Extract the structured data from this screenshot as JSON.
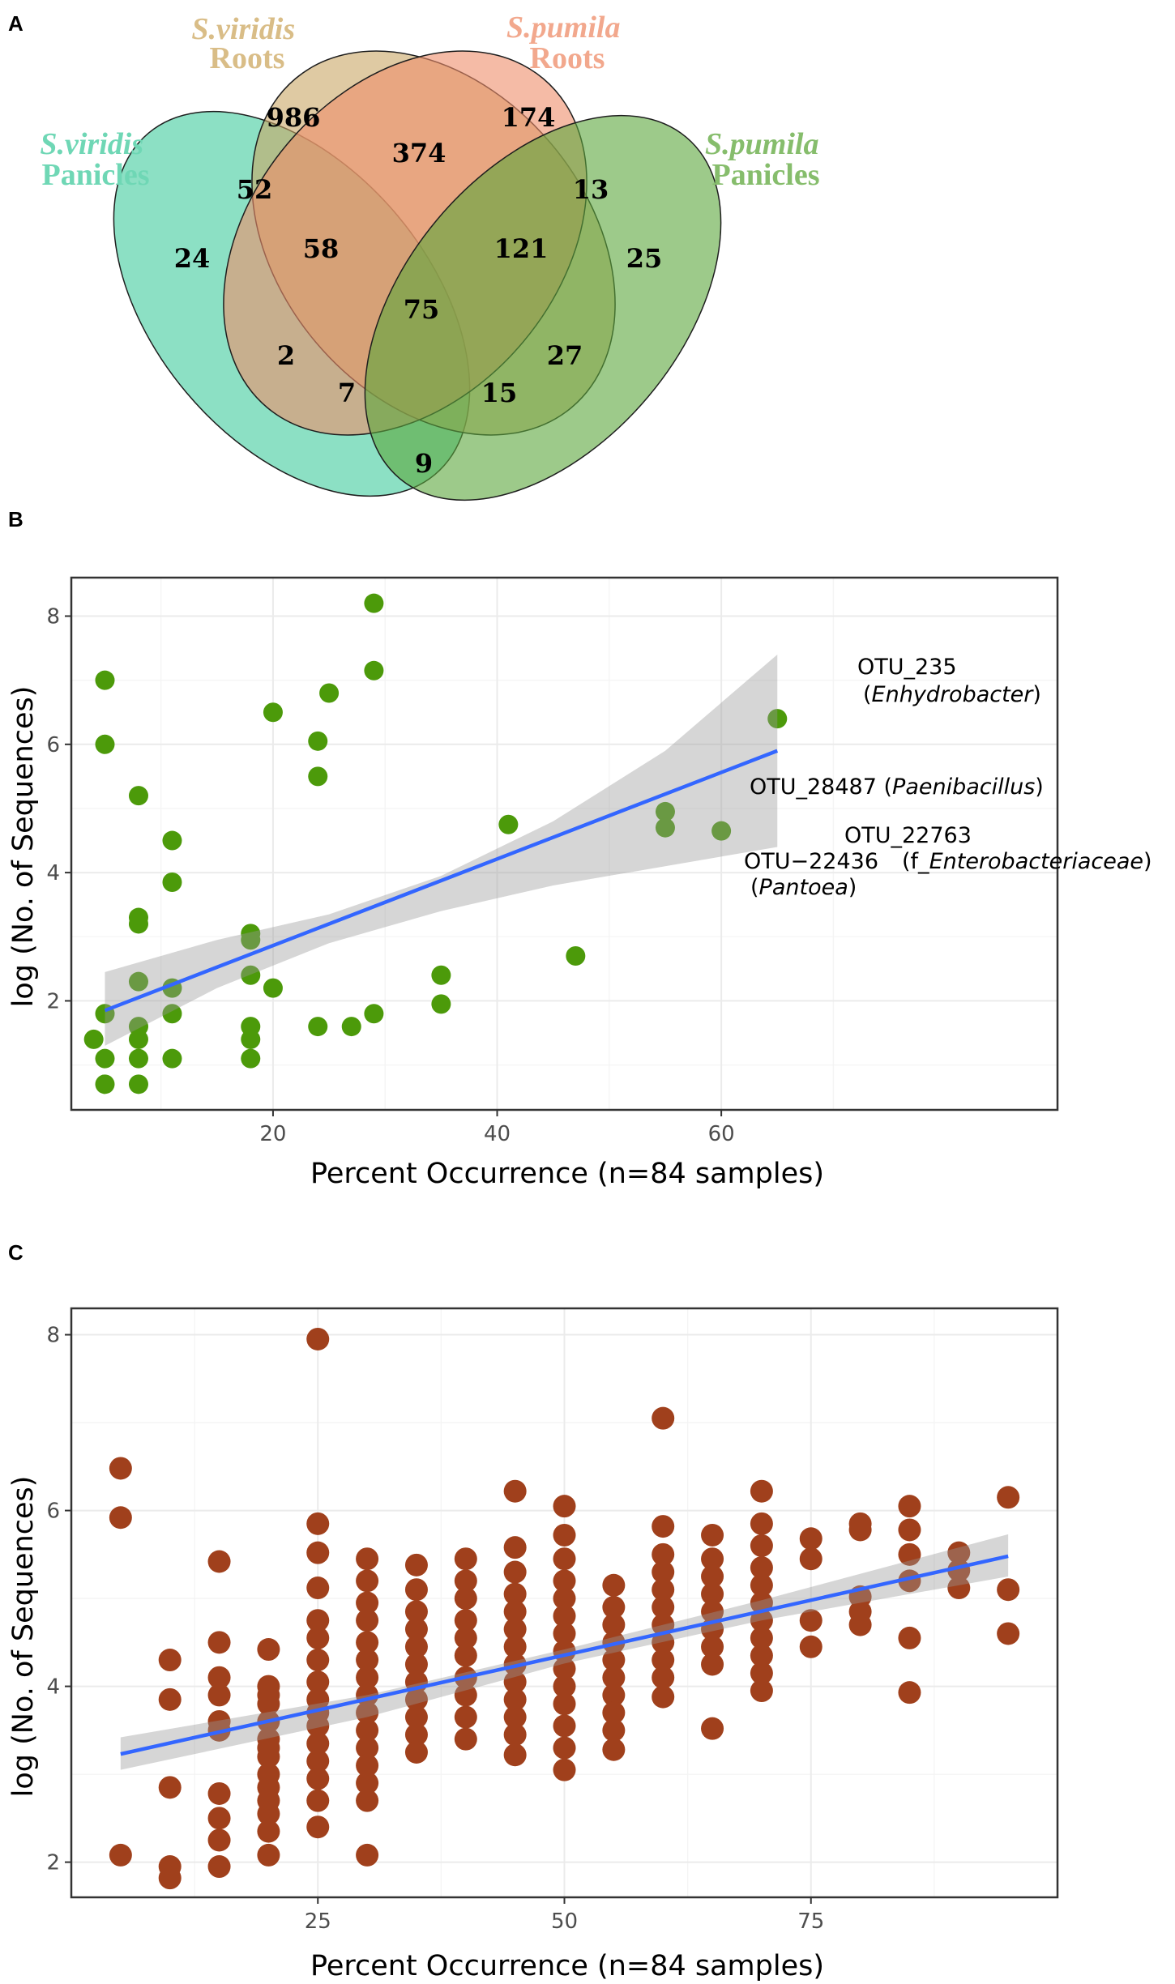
{
  "venn": {
    "panel_letter": "A",
    "sets": [
      {
        "name_it": "S.viridis",
        "name_sub": "Panicles",
        "color": "#3fcb9c",
        "text_color": "#6fd7b5"
      },
      {
        "name_it": "S.viridis",
        "name_sub": "Roots",
        "color": "#c9a766",
        "text_color": "#d9bd87"
      },
      {
        "name_it": "S.pumila",
        "name_sub": "Roots",
        "color": "#ee8d6a",
        "text_color": "#f2a88d"
      },
      {
        "name_it": "S.pumila",
        "name_sub": "Panicles",
        "color": "#5ba63c",
        "text_color": "#86bd6c"
      }
    ],
    "regions": {
      "svr_only": "986",
      "spr_only": "174",
      "svp_only": "24",
      "spp_only": "25",
      "svr_spr": "374",
      "svp_svr": "52",
      "spr_spp": "13",
      "svp_svr_spr": "58",
      "svr_spr_spp": "121",
      "all": "75",
      "svp_spr": "2",
      "svr_spp": "27",
      "svp_spr_spp": "7",
      "svp_svr_spp": "15",
      "svp_spp": "9"
    }
  },
  "chart_data": [
    {
      "panel_letter": "B",
      "type": "scatter",
      "xlabel": "Percent Occurrence (n=84 samples)",
      "ylabel": "log (No. of Sequences)",
      "xlim": [
        2,
        90
      ],
      "ylim": [
        0.3,
        8.6
      ],
      "xticks": [
        20,
        40,
        60
      ],
      "yticks": [
        2,
        4,
        6,
        8
      ],
      "point_color": "#4c9a0a",
      "trend": {
        "x0": 5,
        "y0": 1.85,
        "x1": 65,
        "y1": 5.9,
        "color": "#3366ff"
      },
      "ci_band": {
        "x": [
          5,
          15,
          25,
          35,
          45,
          55,
          65
        ],
        "lo": [
          1.3,
          2.2,
          2.9,
          3.4,
          3.8,
          4.1,
          4.4
        ],
        "hi": [
          2.45,
          2.95,
          3.35,
          3.95,
          4.8,
          5.9,
          7.4
        ]
      },
      "points": [
        [
          4,
          1.4
        ],
        [
          5,
          7.0
        ],
        [
          5,
          6.0
        ],
        [
          5,
          1.8
        ],
        [
          5,
          1.1
        ],
        [
          5,
          0.7
        ],
        [
          8,
          5.2
        ],
        [
          8,
          3.3
        ],
        [
          8,
          3.2
        ],
        [
          8,
          2.3
        ],
        [
          8,
          1.6
        ],
        [
          8,
          1.4
        ],
        [
          8,
          1.1
        ],
        [
          8,
          0.7
        ],
        [
          11,
          4.5
        ],
        [
          11,
          3.85
        ],
        [
          11,
          2.2
        ],
        [
          11,
          1.8
        ],
        [
          11,
          1.1
        ],
        [
          18,
          3.05
        ],
        [
          18,
          2.95
        ],
        [
          18,
          2.4
        ],
        [
          18,
          1.6
        ],
        [
          18,
          1.4
        ],
        [
          18,
          1.1
        ],
        [
          20,
          6.5
        ],
        [
          20,
          2.2
        ],
        [
          24,
          6.05
        ],
        [
          24,
          5.5
        ],
        [
          24,
          1.6
        ],
        [
          25,
          6.8
        ],
        [
          27,
          1.6
        ],
        [
          29,
          8.2
        ],
        [
          29,
          7.15
        ],
        [
          29,
          1.8
        ],
        [
          35,
          2.4
        ],
        [
          35,
          1.95
        ],
        [
          41,
          4.75
        ],
        [
          47,
          2.7
        ],
        [
          55,
          4.95
        ],
        [
          55,
          4.7
        ],
        [
          60,
          4.65
        ],
        [
          65,
          6.4
        ]
      ],
      "labels": {
        "otu235_id": "OTU_235",
        "otu235_taxon": "Enhydrobacter",
        "otu28487_id": "OTU_28487",
        "otu28487_taxon": "Paenibacillus",
        "otu22763_id": "OTU_22763",
        "otu22763_taxon_prefix": "f_",
        "otu22763_taxon": "Enterobacteriaceae",
        "otu22436_id": "OTU−22436",
        "otu22436_taxon": "Pantoea"
      }
    },
    {
      "panel_letter": "C",
      "type": "scatter",
      "xlabel": "Percent Occurrence (n=84 samples)",
      "ylabel": "log (No. of Sequences)",
      "xlim": [
        0,
        100
      ],
      "ylim": [
        1.6,
        8.3
      ],
      "xticks": [
        25,
        50,
        75
      ],
      "yticks": [
        2,
        4,
        6,
        8
      ],
      "point_color": "#a0401c",
      "trend": {
        "x0": 5,
        "y0": 3.23,
        "x1": 95,
        "y1": 5.48,
        "color": "#3366ff"
      },
      "ci_band": {
        "x": [
          5,
          30,
          50,
          70,
          95
        ],
        "lo": [
          3.05,
          3.65,
          4.26,
          4.75,
          5.25
        ],
        "hi": [
          3.42,
          3.9,
          4.42,
          4.98,
          5.73
        ]
      },
      "columns": [
        {
          "x": 5,
          "ys": [
            6.48,
            5.92,
            2.08
          ]
        },
        {
          "x": 10,
          "ys": [
            4.3,
            3.85,
            2.85,
            1.95,
            1.82
          ]
        },
        {
          "x": 15,
          "ys": [
            5.42,
            4.5,
            4.1,
            3.9,
            3.6,
            3.5,
            2.78,
            2.5,
            2.25,
            1.95
          ]
        },
        {
          "x": 20,
          "ys": [
            4.42,
            4.0,
            3.8,
            3.6,
            3.4,
            3.2,
            3.0,
            2.85,
            2.7,
            2.55,
            2.35,
            2.08,
            3.9,
            3.3
          ]
        },
        {
          "x": 25,
          "ys": [
            7.95,
            5.85,
            5.52,
            5.12,
            4.75,
            4.55,
            4.3,
            4.05,
            3.85,
            3.7,
            3.55,
            3.35,
            3.15,
            2.95,
            2.7,
            2.4
          ]
        },
        {
          "x": 30,
          "ys": [
            5.45,
            5.2,
            4.95,
            4.75,
            4.5,
            4.3,
            4.1,
            3.9,
            3.7,
            3.5,
            3.3,
            3.1,
            2.9,
            2.7,
            2.08
          ]
        },
        {
          "x": 35,
          "ys": [
            5.38,
            5.1,
            4.85,
            4.65,
            4.45,
            4.25,
            4.05,
            3.85,
            3.65,
            3.45,
            3.25
          ]
        },
        {
          "x": 40,
          "ys": [
            5.45,
            5.2,
            5.0,
            4.75,
            4.55,
            4.35,
            4.1,
            3.9,
            3.65,
            3.4
          ]
        },
        {
          "x": 45,
          "ys": [
            6.22,
            5.58,
            5.3,
            5.05,
            4.85,
            4.65,
            4.45,
            4.25,
            4.05,
            3.85,
            3.65,
            3.45,
            3.22
          ]
        },
        {
          "x": 50,
          "ys": [
            6.05,
            5.72,
            5.45,
            5.2,
            5.0,
            4.8,
            4.6,
            4.4,
            4.2,
            4.0,
            3.8,
            3.55,
            3.3,
            3.05
          ]
        },
        {
          "x": 55,
          "ys": [
            5.15,
            4.9,
            4.7,
            4.5,
            4.3,
            4.1,
            3.9,
            3.7,
            3.5,
            3.28
          ]
        },
        {
          "x": 60,
          "ys": [
            7.05,
            5.82,
            5.5,
            5.3,
            5.1,
            4.9,
            4.7,
            4.5,
            4.3,
            4.1,
            3.88
          ]
        },
        {
          "x": 65,
          "ys": [
            5.72,
            5.45,
            5.25,
            5.05,
            4.85,
            4.65,
            4.45,
            4.25,
            3.52
          ]
        },
        {
          "x": 70,
          "ys": [
            6.22,
            5.85,
            5.6,
            5.35,
            5.15,
            4.95,
            4.75,
            4.55,
            4.35,
            4.15,
            3.95
          ]
        },
        {
          "x": 75,
          "ys": [
            5.68,
            5.45,
            4.75,
            4.45
          ]
        },
        {
          "x": 80,
          "ys": [
            5.85,
            5.78,
            5.02,
            4.85,
            4.7
          ]
        },
        {
          "x": 85,
          "ys": [
            6.05,
            5.78,
            5.5,
            5.2,
            4.55,
            3.93
          ]
        },
        {
          "x": 90,
          "ys": [
            5.52,
            5.32,
            5.12
          ]
        },
        {
          "x": 95,
          "ys": [
            6.15,
            5.1,
            4.6
          ]
        }
      ]
    }
  ]
}
